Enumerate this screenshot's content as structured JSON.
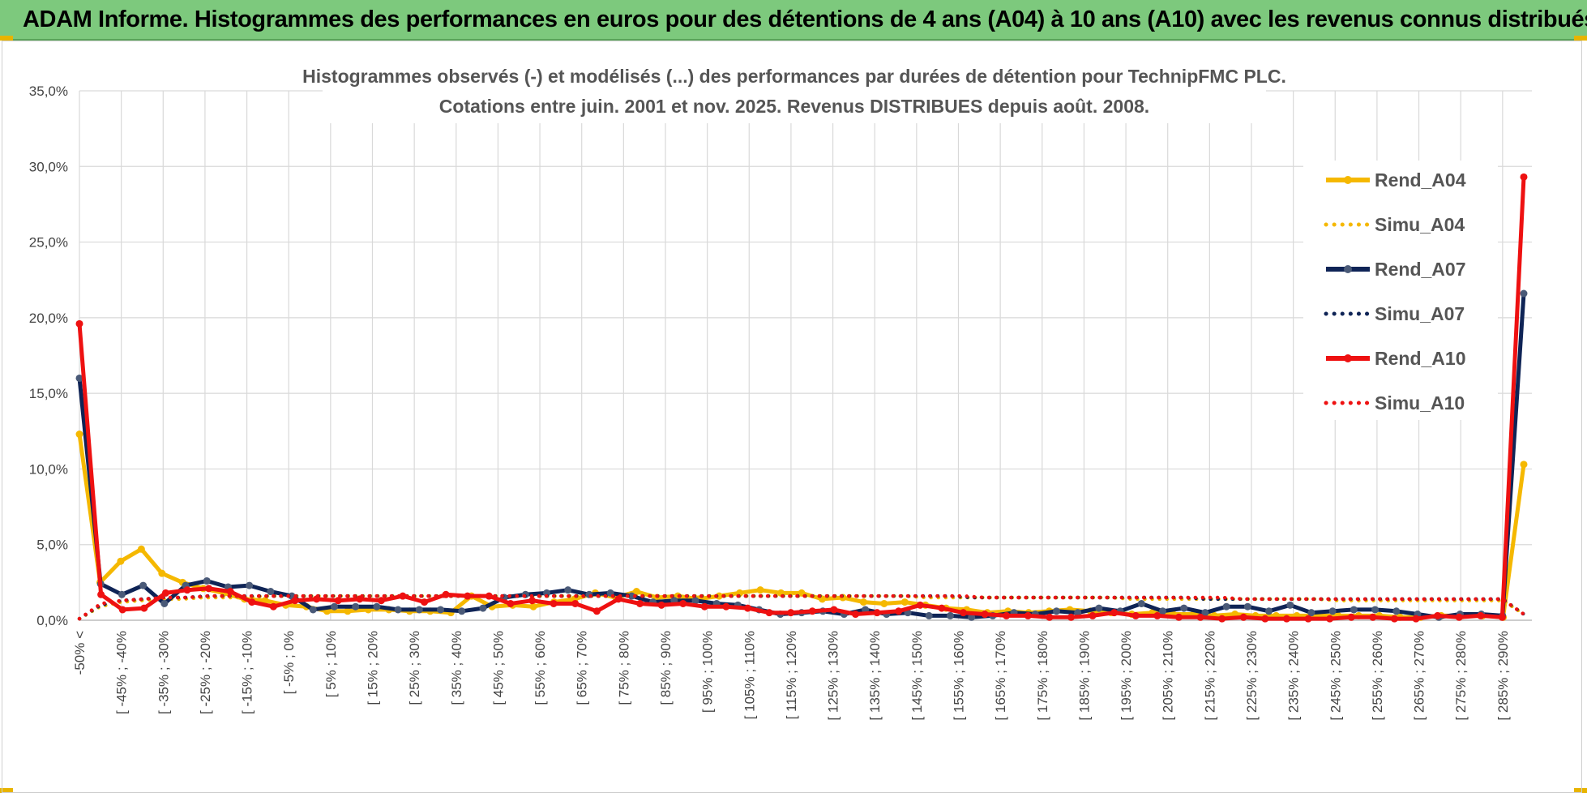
{
  "header": {
    "title": "ADAM Informe. Histogrammes des performances en euros pour des détentions de 4 ans (A04) à 10 ans (A10) avec les revenus connus distribués",
    "color": "#7dc97d"
  },
  "chart_data": {
    "type": "line",
    "title_line1": "Histogrammes observés (-) et modélisés (...) des performances par durées de détention pour TechnipFMC PLC.",
    "title_line2": "Cotations entre juin. 2001 et nov. 2025. Revenus DISTRIBUES depuis août. 2008.",
    "xlabel": "",
    "ylabel": "",
    "ylim": [
      0,
      35
    ],
    "y_ticks": [
      "0,0%",
      "5,0%",
      "10,0%",
      "15,0%",
      "20,0%",
      "25,0%",
      "30,0%",
      "35,0%"
    ],
    "y_tick_values": [
      0,
      5,
      10,
      15,
      20,
      25,
      30,
      35
    ],
    "grid": true,
    "legend_position": "right",
    "category_labels": [
      "-50% <",
      "[ -45% ; -40%",
      "[ -35% ; -30%",
      "[ -25% ; -20%",
      "[ -15% ; -10%",
      "[ -5% ; 0%",
      "[ 5% ; 10%",
      "[ 15% ; 20%",
      "[ 25% ; 30%",
      "[ 35% ; 40%",
      "[ 45% ; 50%",
      "[ 55% ; 60%",
      "[ 65% ; 70%",
      "[ 75% ; 80%",
      "[ 85% ; 90%",
      "[ 95% ; 100%",
      "[ 105% ; 110%",
      "[ 115% ; 120%",
      "[ 125% ; 130%",
      "[ 135% ; 140%",
      "[ 145% ; 150%",
      "[ 155% ; 160%",
      "[ 165% ; 170%",
      "[ 175% ; 180%",
      "[ 185% ; 190%",
      "[ 195% ; 200%",
      "[ 205% ; 210%",
      "[ 215% ; 220%",
      "[ 225% ; 230%",
      "[ 235% ; 240%",
      "[ 245% ; 250%",
      "[ 255% ; 260%",
      "[ 265% ; 270%",
      "[ 275% ; 280%",
      "[ 285% ; 290%"
    ],
    "series": [
      {
        "name": "Rend_A04",
        "color": "#f5b800",
        "style": "solid",
        "values": [
          12.3,
          2.5,
          3.9,
          4.7,
          3.1,
          2.5,
          2.1,
          1.8,
          1.4,
          1.3,
          1.0,
          0.9,
          0.6,
          0.6,
          0.7,
          0.7,
          0.6,
          0.6,
          0.5,
          1.6,
          0.9,
          1.0,
          0.9,
          1.2,
          1.4,
          1.8,
          1.5,
          1.9,
          1.5,
          1.6,
          1.4,
          1.6,
          1.8,
          2.0,
          1.8,
          1.8,
          1.4,
          1.5,
          1.2,
          1.1,
          1.2,
          1.0,
          0.8,
          0.7,
          0.5,
          0.6,
          0.5,
          0.6,
          0.7,
          0.6,
          0.5,
          0.4,
          0.5,
          0.4,
          0.4,
          0.3,
          0.4,
          0.3,
          0.3,
          0.3,
          0.3,
          0.3,
          0.3,
          0.3,
          0.2,
          0.2,
          0.3,
          0.3,
          0.3,
          0.2,
          10.3
        ]
      },
      {
        "name": "Simu_A04",
        "color": "#f5b800",
        "style": "dotted",
        "values": [
          0.1,
          0.9,
          1.2,
          1.3,
          1.4,
          1.4,
          1.5,
          1.5,
          1.5,
          1.6,
          1.6,
          1.6,
          1.6,
          1.6,
          1.6,
          1.6,
          1.6,
          1.6,
          1.6,
          1.6,
          1.6,
          1.6,
          1.6,
          1.6,
          1.6,
          1.6,
          1.6,
          1.6,
          1.6,
          1.6,
          1.6,
          1.6,
          1.6,
          1.6,
          1.6,
          1.6,
          1.6,
          1.6,
          1.6,
          1.6,
          1.6,
          1.5,
          1.5,
          1.5,
          1.5,
          1.5,
          1.5,
          1.5,
          1.5,
          1.5,
          1.5,
          1.4,
          1.4,
          1.4,
          1.4,
          1.4,
          1.4,
          1.4,
          1.4,
          1.4,
          1.4,
          1.3,
          1.3,
          1.3,
          1.3,
          1.3,
          1.3,
          1.3,
          1.3,
          1.3,
          0.4
        ]
      },
      {
        "name": "Rend_A07",
        "color": "#0f2456",
        "style": "solid",
        "values": [
          16.0,
          2.4,
          1.7,
          2.3,
          1.1,
          2.3,
          2.6,
          2.2,
          2.3,
          1.9,
          1.6,
          0.7,
          0.9,
          0.9,
          0.9,
          0.7,
          0.7,
          0.7,
          0.6,
          0.8,
          1.5,
          1.7,
          1.8,
          2.0,
          1.7,
          1.8,
          1.6,
          1.2,
          1.3,
          1.3,
          1.1,
          1.0,
          0.7,
          0.4,
          0.5,
          0.6,
          0.4,
          0.7,
          0.4,
          0.5,
          0.3,
          0.3,
          0.2,
          0.3,
          0.5,
          0.4,
          0.6,
          0.5,
          0.8,
          0.6,
          1.1,
          0.6,
          0.8,
          0.5,
          0.9,
          0.9,
          0.6,
          1.0,
          0.5,
          0.6,
          0.7,
          0.7,
          0.6,
          0.4,
          0.2,
          0.4,
          0.4,
          0.3,
          21.6
        ]
      },
      {
        "name": "Simu_A07",
        "color": "#0f2456",
        "style": "dotted",
        "values": [
          0.1,
          1.0,
          1.3,
          1.4,
          1.5,
          1.5,
          1.6,
          1.6,
          1.6,
          1.6,
          1.6,
          1.6,
          1.6,
          1.6,
          1.6,
          1.6,
          1.6,
          1.6,
          1.6,
          1.6,
          1.6,
          1.6,
          1.6,
          1.6,
          1.6,
          1.6,
          1.6,
          1.6,
          1.6,
          1.6,
          1.6,
          1.6,
          1.6,
          1.6,
          1.6,
          1.6,
          1.6,
          1.6,
          1.6,
          1.6,
          1.6,
          1.6,
          1.5,
          1.5,
          1.5,
          1.5,
          1.5,
          1.5,
          1.5,
          1.5,
          1.5,
          1.5,
          1.5,
          1.4,
          1.4,
          1.4,
          1.4,
          1.4,
          1.4,
          1.4,
          1.4,
          1.4,
          1.4,
          1.4,
          1.4,
          1.4,
          1.4,
          1.4,
          0.4
        ]
      },
      {
        "name": "Rend_A10",
        "color": "#ee1111",
        "style": "solid",
        "values": [
          19.6,
          1.7,
          0.7,
          0.8,
          1.8,
          2.0,
          2.1,
          1.9,
          1.2,
          0.9,
          1.3,
          1.4,
          1.3,
          1.4,
          1.3,
          1.6,
          1.2,
          1.7,
          1.6,
          1.6,
          1.1,
          1.3,
          1.1,
          1.1,
          0.6,
          1.4,
          1.1,
          1.0,
          1.1,
          0.9,
          0.9,
          0.8,
          0.5,
          0.5,
          0.6,
          0.7,
          0.4,
          0.5,
          0.6,
          1.0,
          0.8,
          0.5,
          0.4,
          0.3,
          0.3,
          0.2,
          0.2,
          0.3,
          0.5,
          0.3,
          0.3,
          0.2,
          0.2,
          0.1,
          0.2,
          0.1,
          0.1,
          0.1,
          0.1,
          0.2,
          0.2,
          0.1,
          0.1,
          0.3,
          0.2,
          0.3,
          0.2,
          29.3
        ]
      },
      {
        "name": "Simu_A10",
        "color": "#ee1111",
        "style": "dotted",
        "values": [
          0.1,
          1.1,
          1.3,
          1.4,
          1.5,
          1.5,
          1.6,
          1.6,
          1.6,
          1.6,
          1.6,
          1.6,
          1.6,
          1.6,
          1.6,
          1.6,
          1.6,
          1.6,
          1.6,
          1.6,
          1.6,
          1.6,
          1.6,
          1.6,
          1.6,
          1.6,
          1.6,
          1.6,
          1.6,
          1.6,
          1.6,
          1.6,
          1.6,
          1.6,
          1.6,
          1.6,
          1.6,
          1.6,
          1.6,
          1.6,
          1.6,
          1.6,
          1.5,
          1.5,
          1.5,
          1.5,
          1.5,
          1.5,
          1.5,
          1.5,
          1.5,
          1.5,
          1.5,
          1.5,
          1.4,
          1.4,
          1.4,
          1.4,
          1.4,
          1.4,
          1.4,
          1.4,
          1.4,
          1.4,
          1.4,
          1.4,
          1.4,
          0.4
        ]
      }
    ]
  }
}
